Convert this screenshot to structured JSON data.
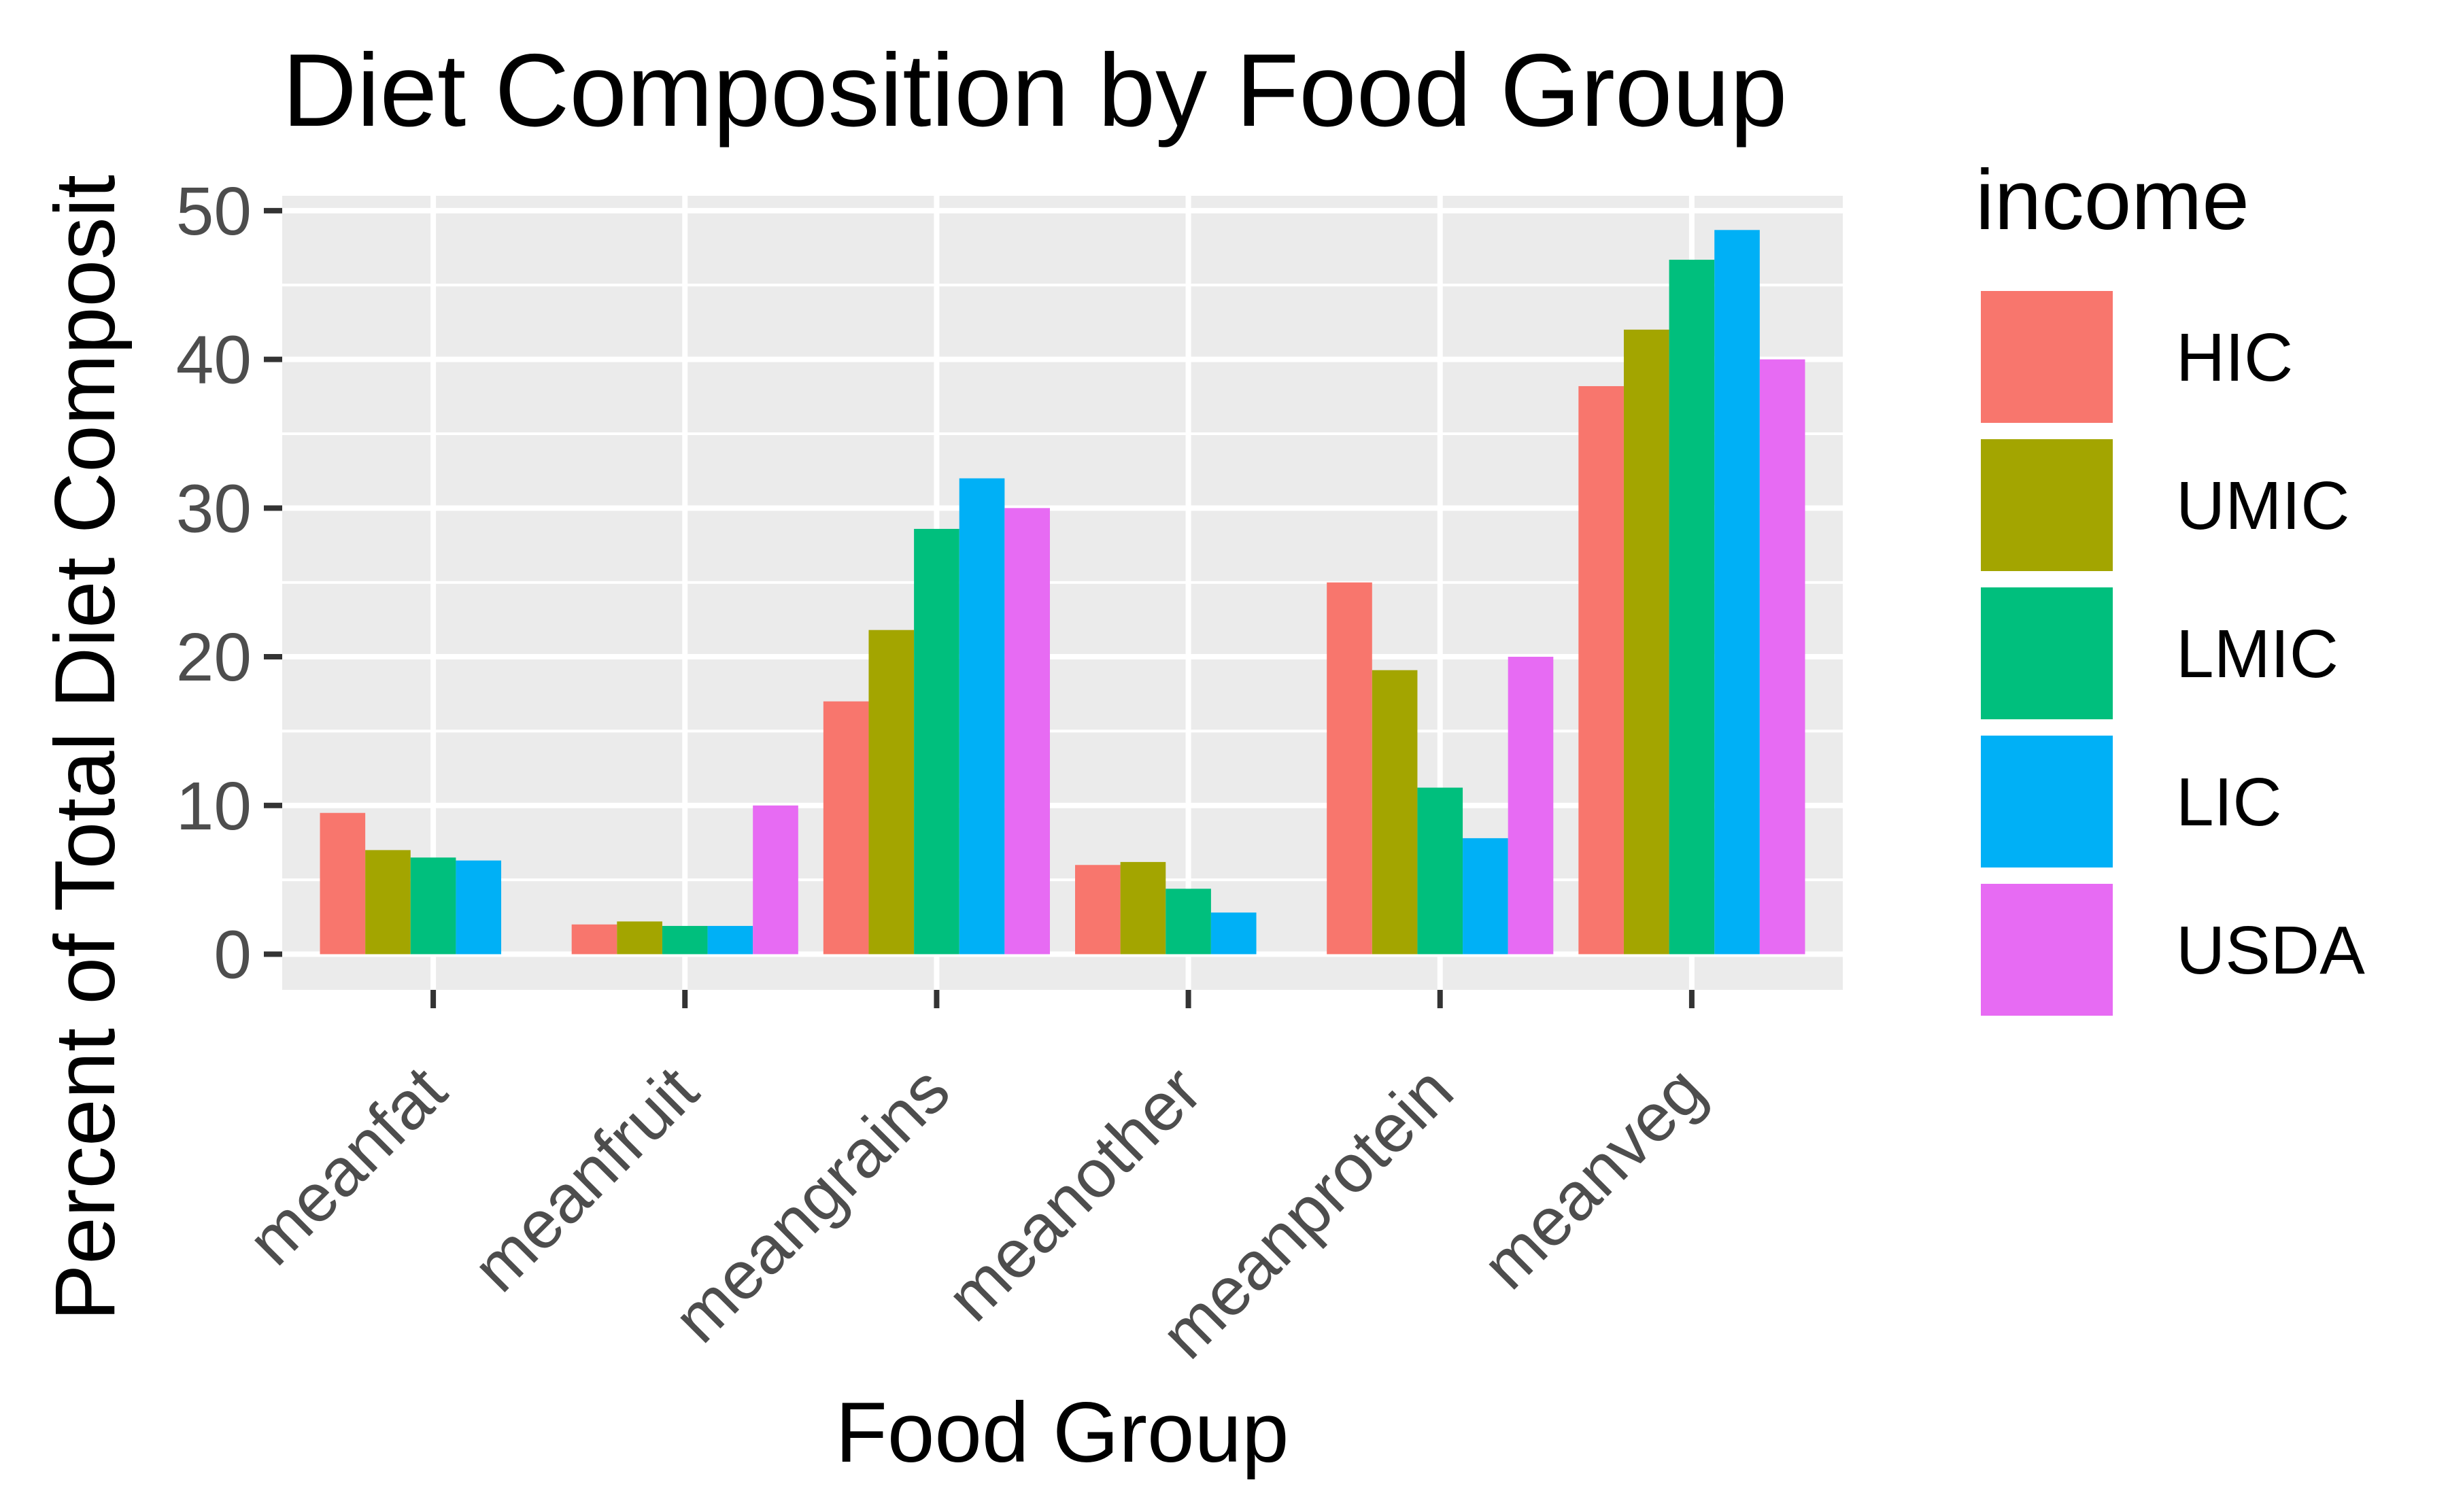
{
  "chart_data": {
    "type": "bar",
    "title": "Diet Composition by Food Group",
    "xlabel": "Food Group",
    "ylabel": "Percent of Total Diet Composit",
    "categories": [
      "meanfat",
      "meanfruit",
      "meangrains",
      "meanother",
      "meanprotein",
      "meanveg"
    ],
    "series": [
      {
        "name": "HIC",
        "color": "#F8766D",
        "values": [
          9.5,
          2.0,
          17.0,
          6.0,
          25.0,
          38.2
        ]
      },
      {
        "name": "UMIC",
        "color": "#A3A500",
        "values": [
          7.0,
          2.2,
          21.8,
          6.2,
          19.1,
          42.0
        ]
      },
      {
        "name": "LMIC",
        "color": "#00BF7D",
        "values": [
          6.5,
          1.9,
          28.6,
          4.4,
          11.2,
          46.7
        ]
      },
      {
        "name": "LIC",
        "color": "#00B0F6",
        "values": [
          6.3,
          1.9,
          32.0,
          2.8,
          7.8,
          48.7
        ]
      },
      {
        "name": "USDA",
        "color": "#E76BF3",
        "values": [
          0,
          10.0,
          30.0,
          0,
          20.0,
          40.0
        ]
      }
    ],
    "ylim": [
      -2.4,
      51.0
    ],
    "yticks": [
      0,
      10,
      20,
      30,
      40,
      50
    ],
    "ytick_labels": [
      "0",
      "10",
      "20",
      "30",
      "40",
      "50"
    ],
    "grid": true,
    "legend": {
      "title": "income",
      "position": "right"
    },
    "colors": {
      "panel_background": "#EBEBEB",
      "gridline": "#FFFFFF",
      "tick": "#333333"
    }
  }
}
